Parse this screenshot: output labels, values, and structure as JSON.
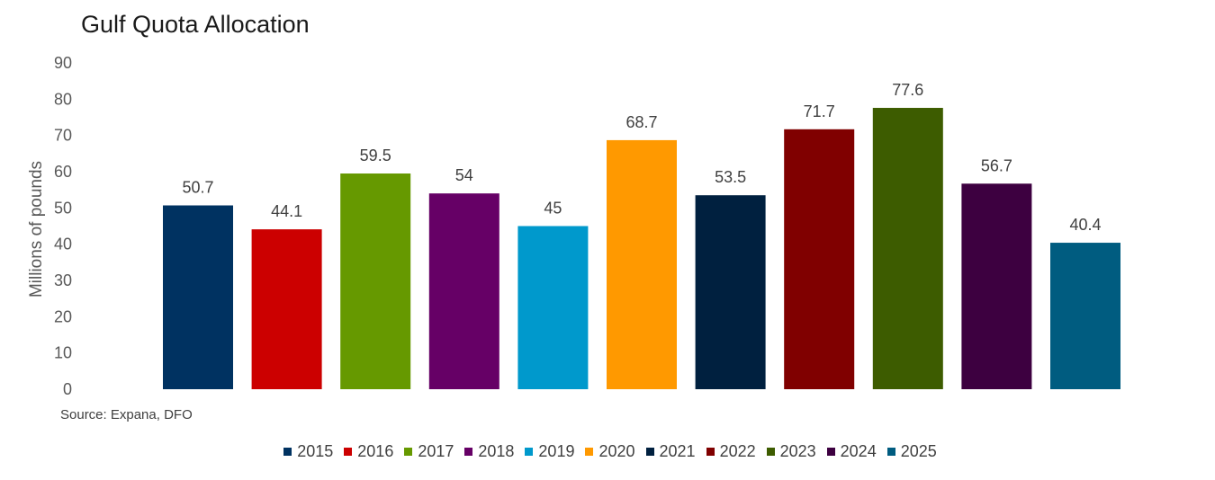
{
  "chart_data": {
    "type": "bar",
    "title": "Gulf Quota Allocation",
    "ylabel": "Millions of pounds",
    "xlabel": "",
    "source": "Source: Expana, DFO",
    "ylim": [
      0,
      90
    ],
    "yticks": [
      0,
      10,
      20,
      30,
      40,
      50,
      60,
      70,
      80,
      90
    ],
    "grid": false,
    "legend_position": "bottom",
    "series": [
      {
        "name": "2015",
        "value": 50.7,
        "label": "50.7",
        "color": "#003261"
      },
      {
        "name": "2016",
        "value": 44.1,
        "label": "44.1",
        "color": "#cc0000"
      },
      {
        "name": "2017",
        "value": 59.5,
        "label": "59.5",
        "color": "#669900"
      },
      {
        "name": "2018",
        "value": 54,
        "label": "54",
        "color": "#660066"
      },
      {
        "name": "2019",
        "value": 45,
        "label": "45",
        "color": "#0099cc"
      },
      {
        "name": "2020",
        "value": 68.7,
        "label": "68.7",
        "color": "#ff9900"
      },
      {
        "name": "2021",
        "value": 53.5,
        "label": "53.5",
        "color": "#00203f"
      },
      {
        "name": "2022",
        "value": 71.7,
        "label": "71.7",
        "color": "#800000"
      },
      {
        "name": "2023",
        "value": 77.6,
        "label": "77.6",
        "color": "#3d5c00"
      },
      {
        "name": "2024",
        "value": 56.7,
        "label": "56.7",
        "color": "#3d0040"
      },
      {
        "name": "2025",
        "value": 40.4,
        "label": "40.4",
        "color": "#005c80"
      }
    ]
  }
}
